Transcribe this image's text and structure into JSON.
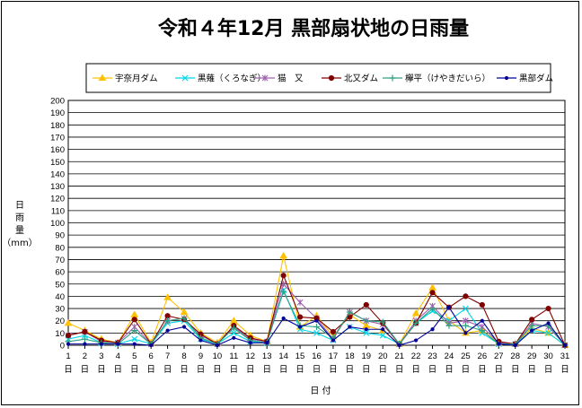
{
  "chart_data": {
    "type": "line",
    "title": "令和４年12月 黒部扇状地の日雨量",
    "ylabel": "日雨量",
    "yunit": "（mm）",
    "xlabel": "日 付",
    "xday_suffix": "日",
    "ylim": [
      0,
      200
    ],
    "ystep": 10,
    "grid": true,
    "legend_position": "top",
    "x": [
      1,
      2,
      3,
      4,
      5,
      6,
      7,
      8,
      9,
      10,
      11,
      12,
      13,
      14,
      15,
      16,
      17,
      18,
      19,
      20,
      21,
      22,
      23,
      24,
      25,
      26,
      27,
      28,
      29,
      30,
      31
    ],
    "series": [
      {
        "name": "宇奈月ダム",
        "color": "#ffc000",
        "marker": "triangle",
        "values": [
          18,
          12,
          5,
          2,
          25,
          2,
          39,
          27,
          10,
          2,
          20,
          8,
          3,
          73,
          15,
          24,
          7,
          25,
          16,
          12,
          1,
          26,
          47,
          20,
          10,
          12,
          2,
          1,
          14,
          10,
          0
        ]
      },
      {
        "name": "黒薙（くろなぎ）",
        "color": "#00d8e8",
        "marker": "x",
        "values": [
          5,
          8,
          2,
          1,
          5,
          1,
          18,
          20,
          5,
          1,
          10,
          3,
          2,
          45,
          13,
          10,
          4,
          15,
          10,
          8,
          1,
          18,
          28,
          20,
          30,
          10,
          1,
          1,
          12,
          10,
          0
        ]
      },
      {
        "name": "猫　又",
        "color": "#a060b0",
        "marker": "star",
        "values": [
          8,
          11,
          3,
          2,
          15,
          1,
          20,
          22,
          8,
          1,
          15,
          5,
          3,
          50,
          35,
          22,
          5,
          27,
          20,
          17,
          1,
          20,
          32,
          18,
          20,
          15,
          2,
          1,
          18,
          15,
          0
        ]
      },
      {
        "name": "北又ダム",
        "color": "#800000",
        "marker": "circle",
        "values": [
          8,
          11,
          4,
          2,
          21,
          1,
          24,
          21,
          9,
          1,
          16,
          6,
          3,
          57,
          23,
          22,
          11,
          23,
          33,
          18,
          1,
          18,
          43,
          31,
          40,
          33,
          3,
          1,
          21,
          30,
          0
        ]
      },
      {
        "name": "欅平（けやきだいら）",
        "color": "#30a080",
        "marker": "plus",
        "values": [
          3,
          5,
          2,
          1,
          12,
          1,
          20,
          22,
          6,
          1,
          14,
          4,
          2,
          44,
          16,
          15,
          6,
          27,
          20,
          19,
          1,
          18,
          30,
          16,
          16,
          12,
          1,
          1,
          16,
          16,
          0
        ]
      },
      {
        "name": "黒部ダム",
        "color": "#000099",
        "marker": "dot",
        "values": [
          1,
          1,
          1,
          1,
          1,
          0,
          12,
          15,
          4,
          0,
          6,
          2,
          2,
          22,
          15,
          20,
          4,
          15,
          13,
          13,
          0,
          4,
          13,
          31,
          10,
          20,
          1,
          0,
          12,
          18,
          0
        ]
      }
    ]
  }
}
